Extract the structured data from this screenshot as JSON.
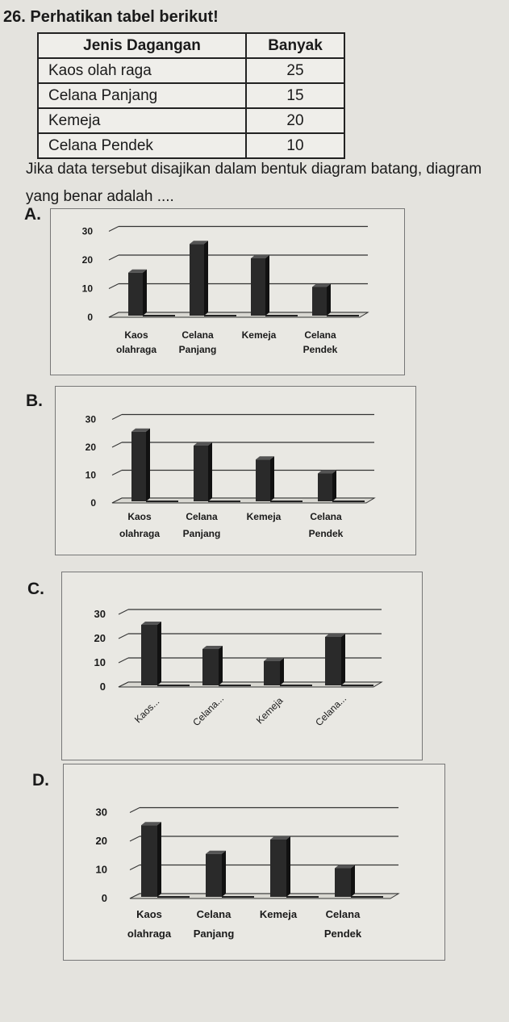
{
  "question": {
    "title": "26. Perhatikan tabel berikut!",
    "prompt": "Jika data tersebut disajikan dalam bentuk diagram batang, diagram yang benar adalah ...."
  },
  "table": {
    "headers": [
      "Jenis Dagangan",
      "Banyak"
    ],
    "rows": [
      [
        "Kaos olah raga",
        "25"
      ],
      [
        "Celana Panjang",
        "15"
      ],
      [
        "Kemeja",
        "20"
      ],
      [
        "Celana Pendek",
        "10"
      ]
    ]
  },
  "options": [
    {
      "letter": "A.",
      "ticks": [
        "30",
        "20",
        "10",
        "0"
      ],
      "labels_line1": [
        "Kaos",
        "Celana",
        "Kemeja",
        "Celana"
      ],
      "labels_line2": [
        "olahraga",
        "Panjang",
        "",
        "Pendek"
      ]
    },
    {
      "letter": "B.",
      "ticks": [
        "30",
        "20",
        "10",
        "0"
      ],
      "labels_line1": [
        "Kaos",
        "Celana",
        "Kemeja",
        "Celana"
      ],
      "labels_line2": [
        "olahraga",
        "Panjang",
        "",
        "Pendek"
      ]
    },
    {
      "letter": "C.",
      "ticks": [
        "30",
        "20",
        "10",
        "0"
      ],
      "labels_rotated": [
        "Kaos...",
        "Celana...",
        "Kemeja",
        "Celana..."
      ]
    },
    {
      "letter": "D.",
      "ticks": [
        "30",
        "20",
        "10",
        "0"
      ],
      "labels_line1": [
        "Kaos",
        "Celana",
        "Kemeja",
        "Celana"
      ],
      "labels_line2": [
        "olahraga",
        "Panjang",
        "",
        "Pendek"
      ]
    }
  ],
  "chart_data": [
    {
      "type": "bar",
      "categories": [
        "Kaos olahraga",
        "Celana Panjang",
        "Kemeja",
        "Celana Pendek"
      ],
      "values": [
        15,
        25,
        20,
        10
      ],
      "ylim": [
        0,
        30
      ],
      "grid": true
    },
    {
      "type": "bar",
      "categories": [
        "Kaos olahraga",
        "Celana Panjang",
        "Kemeja",
        "Celana Pendek"
      ],
      "values": [
        25,
        20,
        15,
        10
      ],
      "ylim": [
        0,
        30
      ],
      "grid": true
    },
    {
      "type": "bar",
      "categories": [
        "Kaos...",
        "Celana...",
        "Kemeja",
        "Celana..."
      ],
      "values": [
        25,
        15,
        10,
        20
      ],
      "ylim": [
        0,
        30
      ],
      "grid": true
    },
    {
      "type": "bar",
      "categories": [
        "Kaos olahraga",
        "Celana Panjang",
        "Kemeja",
        "Celana Pendek"
      ],
      "values": [
        25,
        15,
        20,
        10
      ],
      "ylim": [
        0,
        30
      ],
      "grid": true
    }
  ]
}
